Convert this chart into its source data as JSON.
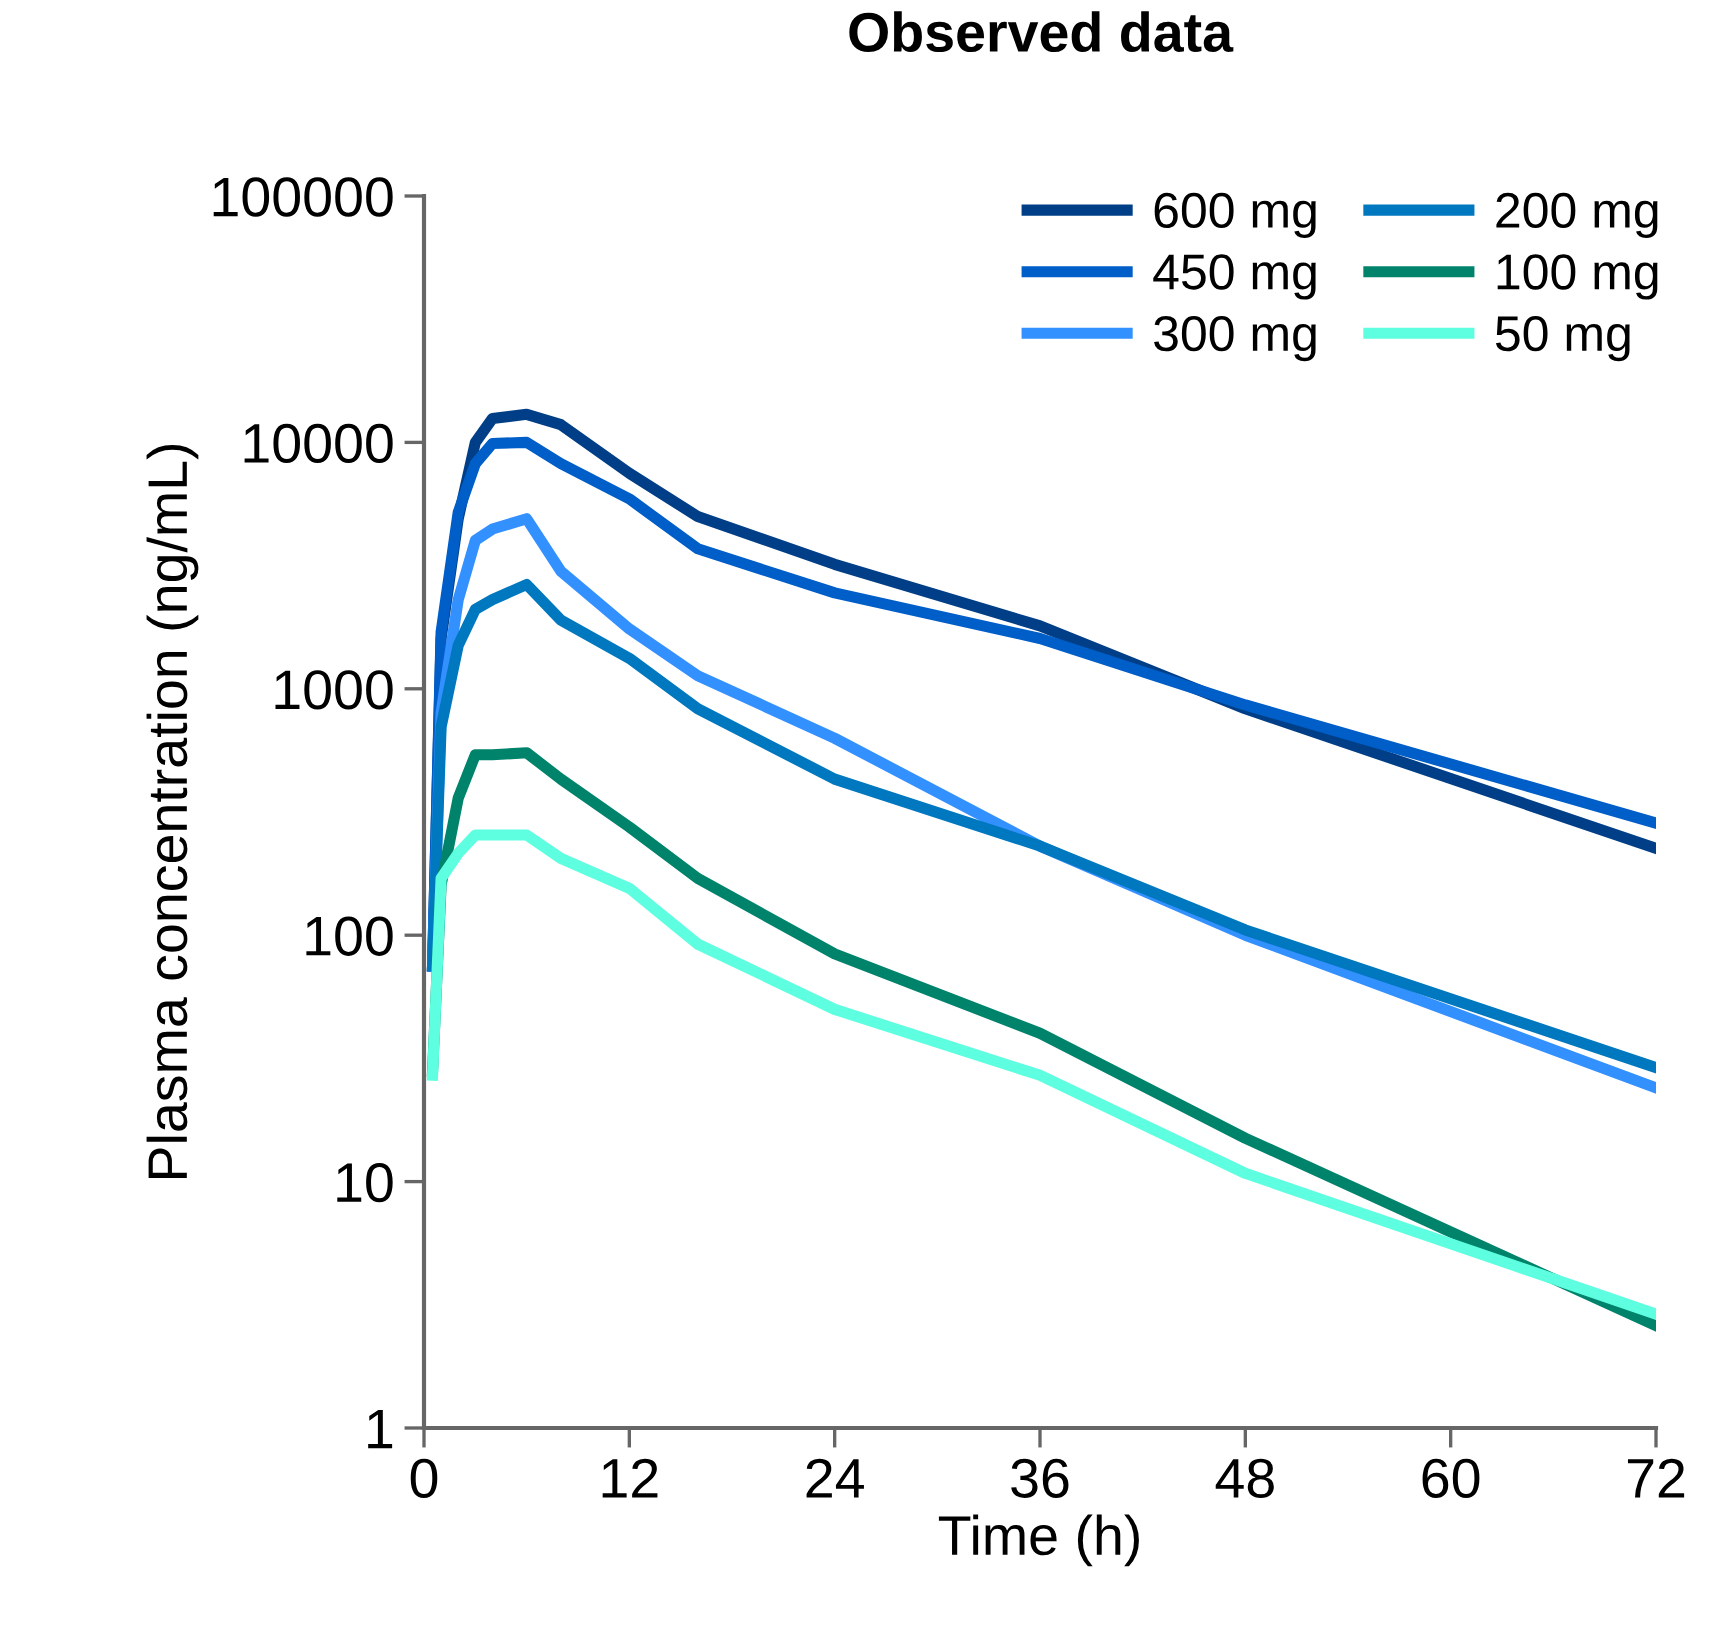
{
  "chart_data": {
    "type": "line",
    "title": "Observed data",
    "xlabel": "Time (h)",
    "ylabel": "Plasma concentration (ng/mL)",
    "log": "y",
    "xlim": [
      0,
      72
    ],
    "xticks": [
      0,
      12,
      24,
      36,
      48,
      60,
      72
    ],
    "ylim": [
      1,
      100000
    ],
    "yticks": [
      1,
      10,
      100,
      1000,
      10000,
      100000
    ],
    "grid": false,
    "legend": "top right",
    "marker": "none",
    "line_style": "solid",
    "x": [
      0.5,
      1,
      2,
      3,
      4,
      6,
      8,
      12,
      16,
      24,
      36,
      48,
      72
    ],
    "series": [
      {
        "name": "600 mg",
        "color": "#003f87",
        "values": [
          75,
          1600,
          4900,
          10000,
          12500,
          13000,
          11800,
          7500,
          5000,
          3200,
          1800,
          830,
          225
        ]
      },
      {
        "name": "450 mg",
        "color": "#005ec8",
        "values": [
          75,
          1700,
          5200,
          8200,
          9900,
          10000,
          8200,
          5900,
          3700,
          2450,
          1600,
          860,
          285
        ]
      },
      {
        "name": "300 mg",
        "color": "#3390ff",
        "values": [
          75,
          800,
          2300,
          4000,
          4450,
          4900,
          3000,
          1750,
          1130,
          630,
          230,
          100,
          24
        ]
      },
      {
        "name": "200 mg",
        "color": "#0078bf",
        "values": [
          75,
          700,
          1500,
          2100,
          2300,
          2650,
          1900,
          1330,
          830,
          430,
          230,
          105,
          29
        ]
      },
      {
        "name": "100 mg",
        "color": "#00836b",
        "values": [
          28,
          160,
          360,
          540,
          540,
          550,
          430,
          275,
          170,
          84,
          40,
          15,
          2.6
        ]
      },
      {
        "name": "50 mg",
        "color": "#5effe0",
        "values": [
          27,
          170,
          215,
          255,
          255,
          255,
          205,
          155,
          92,
          50,
          27,
          10.8,
          2.9
        ]
      }
    ]
  }
}
